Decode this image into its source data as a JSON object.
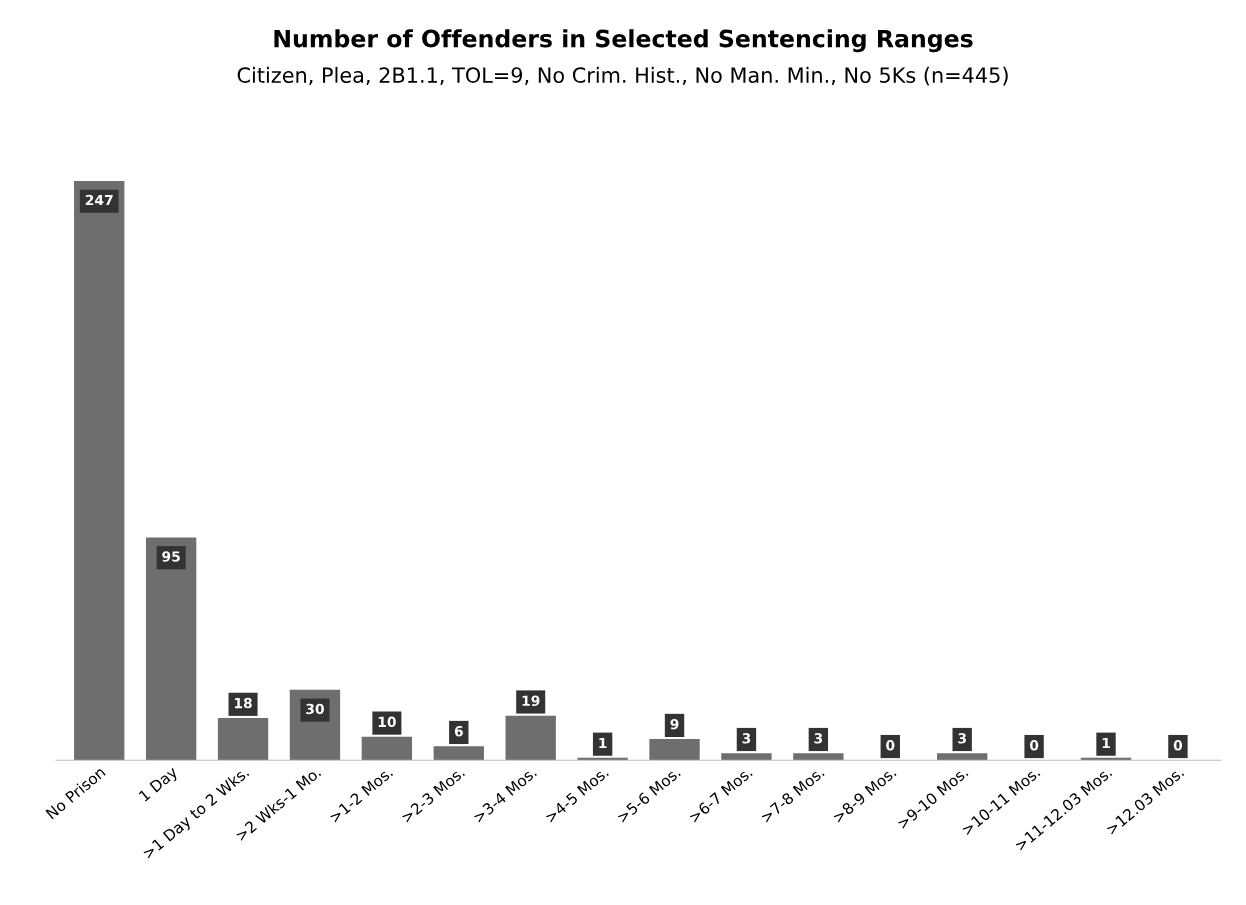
{
  "chart_data": {
    "type": "bar",
    "title": "Number of Offenders in Selected Sentencing Ranges",
    "subtitle": "Citizen, Plea, 2B1.1, TOL=9, No Crim. Hist., No Man. Min., No 5Ks (n=445)",
    "categories": [
      "No Prison",
      "1 Day",
      ">1 Day to 2 Wks.",
      ">2 Wks-1 Mo.",
      ">1-2 Mos.",
      ">2-3 Mos.",
      ">3-4 Mos.",
      ">4-5 Mos.",
      ">5-6 Mos.",
      ">6-7 Mos.",
      ">7-8 Mos.",
      ">8-9 Mos.",
      ">9-10 Mos.",
      ">10-11 Mos.",
      ">11-12.03 Mos.",
      ">12.03 Mos."
    ],
    "values": [
      247,
      95,
      18,
      30,
      10,
      6,
      19,
      1,
      9,
      3,
      3,
      0,
      3,
      0,
      1,
      0
    ],
    "color": "#6e6e6e",
    "data_labels": true,
    "grid": false,
    "legend": false
  }
}
